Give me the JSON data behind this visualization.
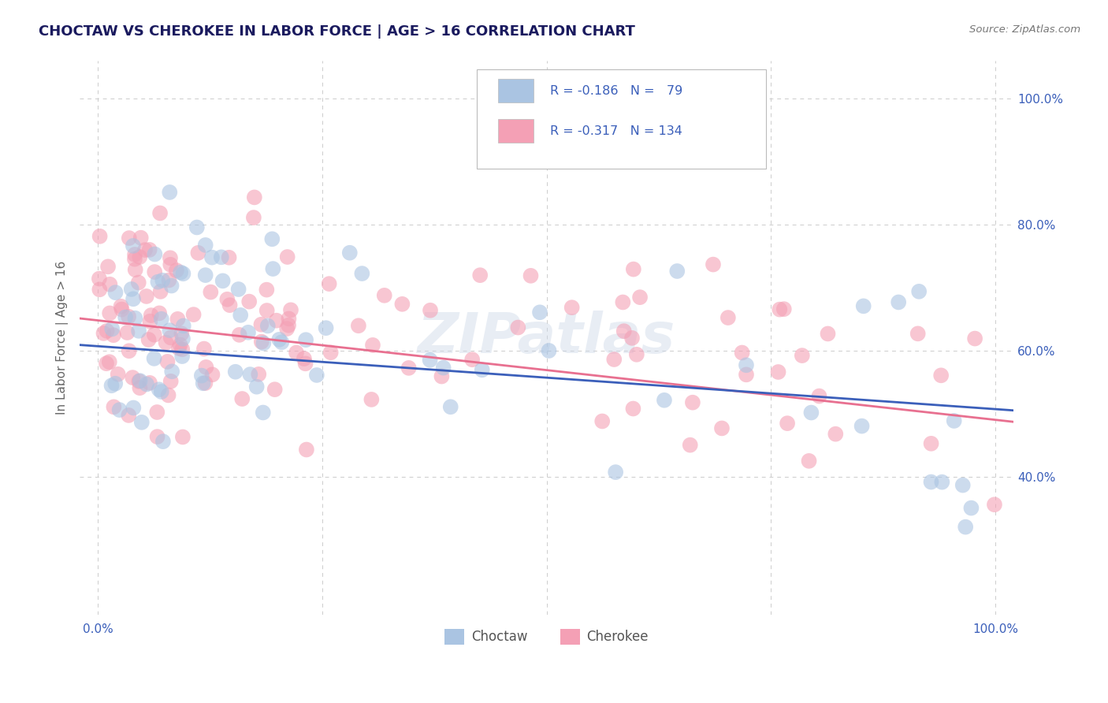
{
  "title": "CHOCTAW VS CHEROKEE IN LABOR FORCE | AGE > 16 CORRELATION CHART",
  "source_text": "Source: ZipAtlas.com",
  "ylabel": "In Labor Force | Age > 16",
  "xlim": [
    -0.02,
    1.02
  ],
  "ylim": [
    0.18,
    1.06
  ],
  "choctaw_R": -0.186,
  "choctaw_N": 79,
  "cherokee_R": -0.317,
  "cherokee_N": 134,
  "choctaw_color": "#aac4e2",
  "cherokee_color": "#f4a0b5",
  "choctaw_line_color": "#3b5fba",
  "cherokee_line_color": "#e87090",
  "watermark": "ZIPatlas",
  "background_color": "#ffffff",
  "grid_color": "#cccccc",
  "title_color": "#1a1a5e",
  "legend_text_color": "#3b5fba",
  "legend_label_color": "#555555",
  "right_ytick_color": "#3b5fba"
}
